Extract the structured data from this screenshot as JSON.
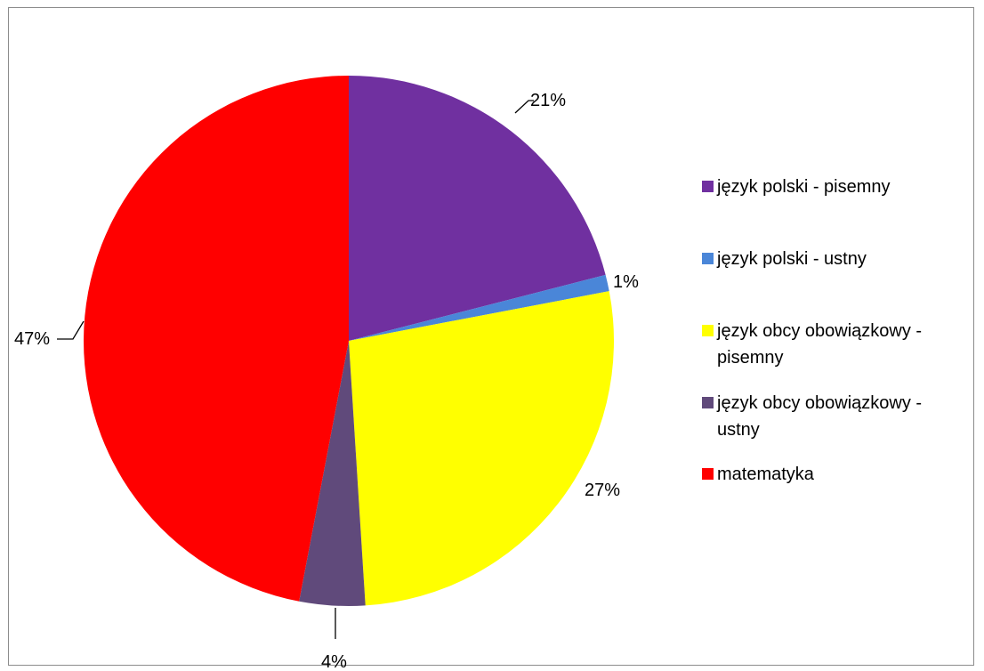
{
  "chart_data": {
    "type": "pie",
    "title": "",
    "slices": [
      {
        "name": "język polski - pisemny",
        "value": 21,
        "label": "21%",
        "color": "#7030A0"
      },
      {
        "name": "język polski - ustny",
        "value": 1,
        "label": "1%",
        "color": "#4A86D8"
      },
      {
        "name": "język obcy obowiązkowy - pisemny",
        "value": 27,
        "label": "27%",
        "color": "#FFFF00"
      },
      {
        "name": "język obcy obowiązkowy - ustny",
        "value": 4,
        "label": "4%",
        "color": "#604A7B"
      },
      {
        "name": "matematyka",
        "value": 47,
        "label": "47%",
        "color": "#FF0000"
      }
    ],
    "start": "12 o'clock, clockwise",
    "legend_position": "right"
  }
}
